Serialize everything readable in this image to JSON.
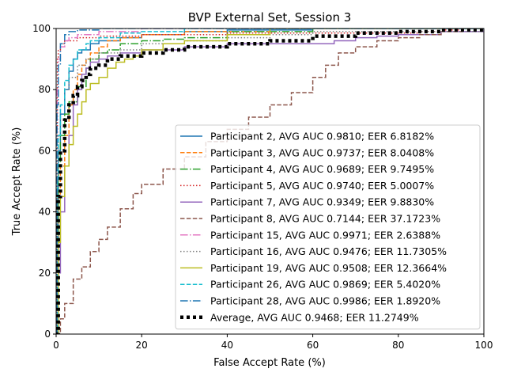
{
  "chart_data": {
    "type": "line",
    "title": "BVP External Set, Session 3",
    "xlabel": "False Accept Rate (%)",
    "ylabel": "True Accept Rate (%)",
    "xlim": [
      0,
      100
    ],
    "ylim": [
      0,
      100
    ],
    "xticks": [
      0,
      20,
      40,
      60,
      80,
      100
    ],
    "yticks": [
      0,
      20,
      40,
      60,
      80,
      100
    ],
    "grid": false,
    "legend_position": "lower-right",
    "series": [
      {
        "name": "Participant 2, AVG AUC 0.9810; EER 6.8182%",
        "color": "#1f77b4",
        "dash": "solid",
        "x": [
          0,
          0.5,
          1,
          2,
          3,
          4,
          5,
          6,
          8,
          10,
          15,
          20,
          30,
          40,
          60,
          100
        ],
        "y": [
          0,
          60,
          72,
          80,
          86,
          90,
          92,
          93,
          95,
          96,
          97,
          98,
          99,
          99.5,
          100,
          100
        ]
      },
      {
        "name": "Participant 3, AVG AUC 0.9737; EER 8.0408%",
        "color": "#ff7f0e",
        "dash": "dashed",
        "x": [
          0,
          0.5,
          1,
          2,
          3,
          4,
          5,
          6,
          7,
          8,
          10,
          12,
          15,
          20,
          30,
          50,
          100
        ],
        "y": [
          0,
          45,
          55,
          65,
          75,
          80,
          85,
          88,
          90,
          92,
          94,
          96,
          97,
          98,
          99,
          100,
          100
        ]
      },
      {
        "name": "Participant 4, AVG AUC 0.9689; EER 9.7495%",
        "color": "#2ca02c",
        "dash": "dashdot",
        "x": [
          0,
          0.5,
          1,
          2,
          3,
          5,
          7,
          8,
          10,
          12,
          15,
          20,
          25,
          30,
          40,
          60,
          100
        ],
        "y": [
          0,
          55,
          65,
          72,
          76,
          81,
          87,
          90,
          92,
          93,
          95,
          96,
          96.5,
          97,
          99,
          100,
          100
        ]
      },
      {
        "name": "Participant 5, AVG AUC 0.9740; EER 5.0007%",
        "color": "#d62728",
        "dash": "dotted",
        "x": [
          0,
          0.3,
          0.5,
          1,
          2,
          5,
          10,
          20,
          40,
          60,
          70,
          75,
          85,
          90,
          95,
          100
        ],
        "y": [
          0,
          90,
          93,
          95,
          96,
          97,
          97.5,
          98,
          98.5,
          98.5,
          98.5,
          98.5,
          99,
          99.5,
          100,
          100
        ]
      },
      {
        "name": "Participant 7, AVG AUC 0.9349; EER 9.8830%",
        "color": "#9467bd",
        "dash": "solid",
        "x": [
          0,
          0.5,
          1,
          2,
          3,
          4,
          5,
          6,
          7,
          8,
          10,
          12,
          15,
          20,
          30,
          40,
          50,
          60,
          65,
          70,
          75,
          80,
          90,
          100
        ],
        "y": [
          0,
          20,
          40,
          55,
          65,
          75,
          80,
          85,
          87,
          89,
          90,
          91,
          92,
          93,
          94,
          95,
          95,
          95,
          96,
          97,
          97.5,
          98,
          99,
          100
        ]
      },
      {
        "name": "Participant 8, AVG AUC 0.7144; EER 37.1723%",
        "color": "#8c564b",
        "dash": "dashed",
        "x": [
          0,
          1,
          2,
          4,
          6,
          8,
          10,
          12,
          15,
          18,
          20,
          25,
          30,
          35,
          40,
          45,
          50,
          55,
          60,
          63,
          66,
          70,
          75,
          80,
          85,
          90,
          95,
          100
        ],
        "y": [
          0,
          5,
          10,
          18,
          22,
          27,
          31,
          35,
          41,
          46,
          49,
          54,
          58,
          63,
          67,
          71,
          75,
          79,
          84,
          88,
          92,
          94,
          96,
          97,
          98,
          99,
          100,
          100
        ]
      },
      {
        "name": "Participant 15, AVG AUC 0.9971; EER 2.6388%",
        "color": "#e377c2",
        "dash": "dashdot",
        "x": [
          0,
          0.2,
          0.5,
          1,
          2,
          3,
          5,
          10,
          20,
          100
        ],
        "y": [
          0,
          80,
          90,
          94,
          96,
          97,
          98,
          99,
          100,
          100
        ]
      },
      {
        "name": "Participant 16, AVG AUC 0.9476; EER 11.7305%",
        "color": "#7f7f7f",
        "dash": "dotted",
        "x": [
          0,
          0.3,
          0.5,
          1,
          2,
          3,
          5,
          7,
          10,
          15,
          20,
          30,
          40,
          50,
          60,
          100
        ],
        "y": [
          0,
          50,
          65,
          75,
          80,
          84,
          88,
          90,
          92,
          93,
          95,
          96,
          97,
          98,
          99,
          100
        ]
      },
      {
        "name": "Participant 19, AVG AUC 0.9508; EER 12.3664%",
        "color": "#bcbd22",
        "dash": "solid",
        "x": [
          0,
          0.5,
          1,
          2,
          3,
          4,
          5,
          6,
          7,
          8,
          10,
          12,
          14,
          16,
          18,
          20,
          25,
          30,
          40,
          50,
          100
        ],
        "y": [
          0,
          30,
          45,
          55,
          62,
          68,
          72,
          76,
          80,
          82,
          84,
          87,
          89,
          90,
          91,
          93,
          95,
          96,
          98,
          100,
          100
        ]
      },
      {
        "name": "Participant 26, AVG AUC 0.9869; EER 5.4020%",
        "color": "#17becf",
        "dash": "dashed",
        "x": [
          0,
          0.3,
          0.5,
          1,
          2,
          3,
          4,
          5,
          7,
          8,
          10,
          15,
          20,
          30,
          100
        ],
        "y": [
          0,
          50,
          65,
          75,
          83,
          88,
          90,
          93,
          95,
          96,
          97,
          98.5,
          99,
          100,
          100
        ]
      },
      {
        "name": "Participant 28, AVG AUC 0.9986; EER 1.8920%",
        "color": "#1f77b4",
        "dash": "dashdot",
        "x": [
          0,
          0.2,
          0.5,
          1,
          2,
          3,
          5,
          10,
          100
        ],
        "y": [
          0,
          75,
          88,
          95,
          98,
          99,
          99.5,
          100,
          100
        ]
      },
      {
        "name": "Average, AVG AUC 0.9468; EER 11.2749%",
        "color": "#000000",
        "dash": "thickdotted",
        "x": [
          0,
          0.5,
          1,
          2,
          3,
          4,
          5,
          6,
          7,
          8,
          10,
          12,
          15,
          20,
          25,
          30,
          40,
          50,
          60,
          70,
          80,
          90,
          100
        ],
        "y": [
          0,
          45,
          60,
          70,
          75,
          78,
          81,
          83,
          85,
          87,
          88,
          90,
          91,
          92,
          93,
          94,
          95,
          96,
          97.5,
          98.5,
          99,
          99.5,
          100
        ]
      }
    ]
  }
}
